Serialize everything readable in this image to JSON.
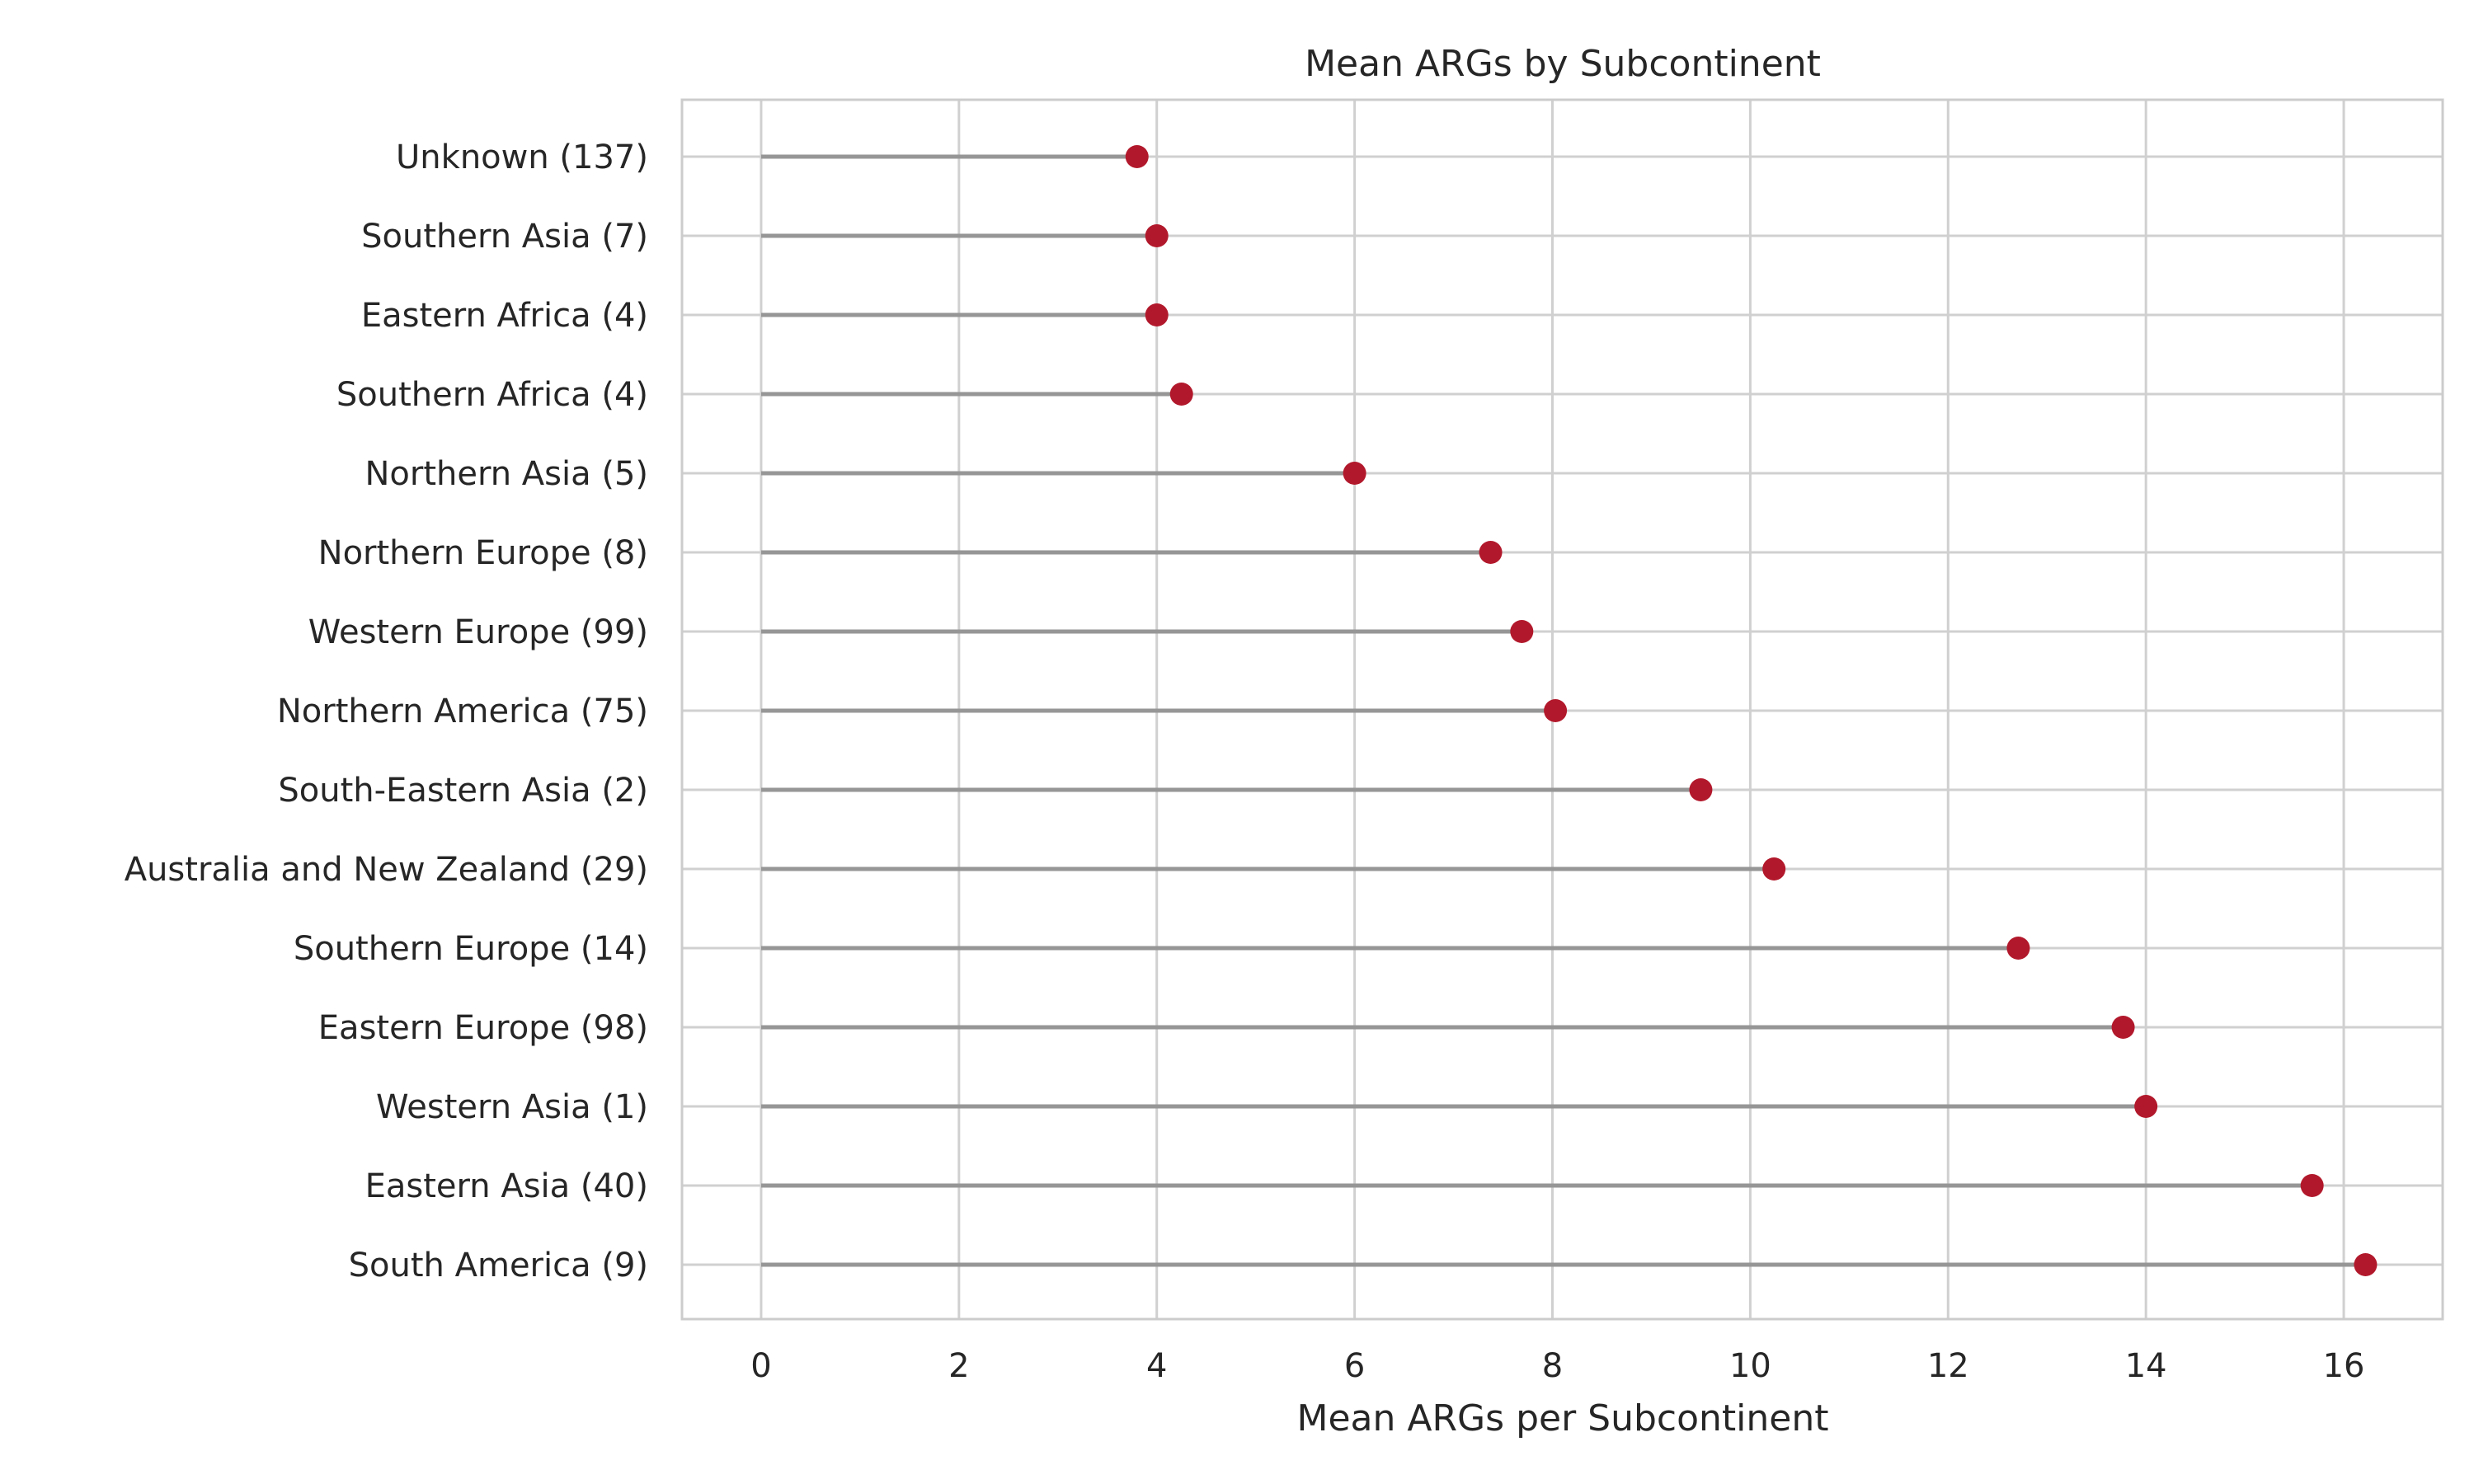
{
  "chart_data": {
    "type": "lollipop",
    "title": "Mean ARGs by Subcontinent",
    "xlabel": "Mean ARGs per Subcontinent",
    "ylabel": "",
    "xlim": [
      -0.8,
      17.0
    ],
    "xticks": [
      0,
      2,
      4,
      6,
      8,
      10,
      12,
      14,
      16
    ],
    "grid": true,
    "categories": [
      "Unknown (137)",
      "Southern Asia (7)",
      "Eastern Africa (4)",
      "Southern Africa (4)",
      "Northern Asia (5)",
      "Northern Europe (8)",
      "Western Europe (99)",
      "Northern America (75)",
      "South-Eastern Asia (2)",
      "Australia and New Zealand (29)",
      "Southern Europe (14)",
      "Eastern Europe (98)",
      "Western Asia (1)",
      "Eastern Asia (40)",
      "South America (9)"
    ],
    "values": [
      3.8,
      4.0,
      4.0,
      4.25,
      6.0,
      7.375,
      7.69,
      8.03,
      9.5,
      10.24,
      12.71,
      13.77,
      14.0,
      15.68,
      16.22
    ],
    "colors": {
      "marker": "#b2182b",
      "stem": "#969696",
      "grid": "#d0d0d0",
      "frame": "#cccccc",
      "text": "#262626"
    }
  }
}
